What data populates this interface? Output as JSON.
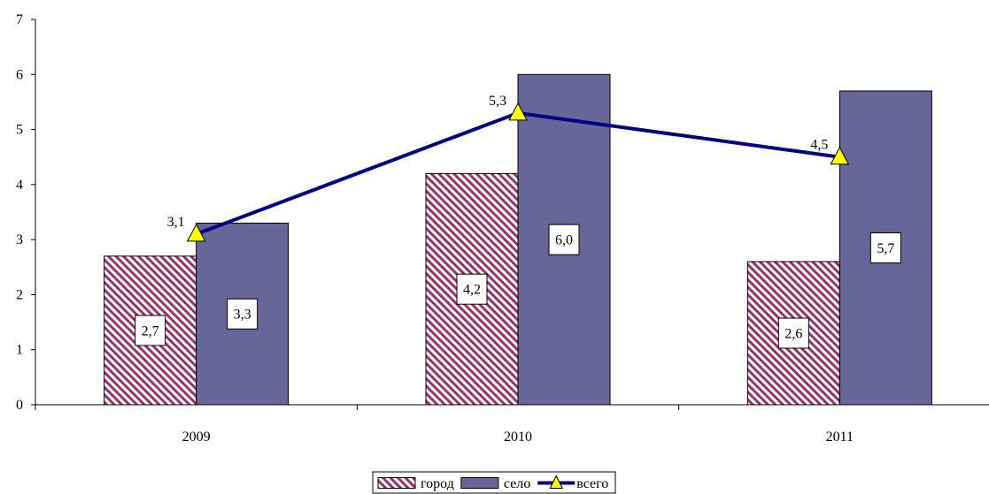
{
  "chart_data": {
    "type": "bar",
    "categories": [
      "2009",
      "2010",
      "2011"
    ],
    "ylim": [
      0,
      7
    ],
    "yticks": [
      0,
      1,
      2,
      3,
      4,
      5,
      6,
      7
    ],
    "grid": false,
    "legend_position": "bottom",
    "series": [
      {
        "name": "город",
        "kind": "bar",
        "values": [
          2.7,
          4.2,
          2.6
        ],
        "labels": [
          "2,7",
          "4,2",
          "2,6"
        ],
        "color": "#993366",
        "pattern": "diagonal-hatch"
      },
      {
        "name": "село",
        "kind": "bar",
        "values": [
          3.3,
          6.0,
          5.7
        ],
        "labels": [
          "3,3",
          "6,0",
          "5,7"
        ],
        "color": "#666699"
      },
      {
        "name": "всего",
        "kind": "line",
        "values": [
          3.1,
          5.3,
          4.5
        ],
        "labels": [
          "3,1",
          "5,3",
          "4,5"
        ],
        "color": "#000080",
        "marker": "triangle",
        "marker_color": "#ffff00"
      }
    ]
  }
}
